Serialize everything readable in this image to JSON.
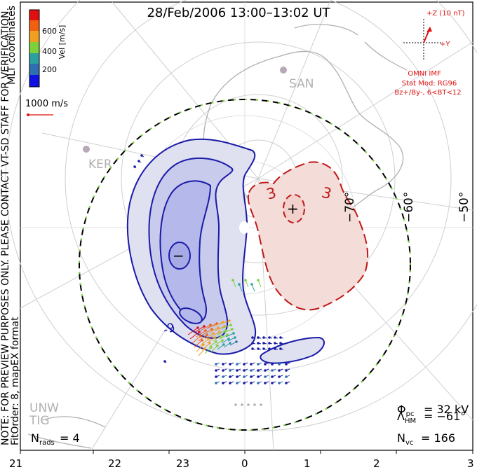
{
  "title": "28/Feb/2006 13:00–13:02 UT",
  "colorbar": {
    "label": "Vel [m/s]",
    "ticks": [
      "200",
      "400",
      "600"
    ],
    "colors": [
      "#1010e0",
      "#2f6fb0",
      "#2aa0a0",
      "#7ed03a",
      "#f0a020",
      "#f06010",
      "#e01010"
    ]
  },
  "side_label_mlt": "MLT coordinates",
  "vector_scale": "1000 m/s",
  "note_preview": "NOTE: FOR PREVIEW PURPOSES ONLY. PLEASE CONTACT VT-SD STAFF FOR VERIFICATION.",
  "note_fit": "FitOrder: 8, mapEX format",
  "imf": {
    "z_label": "+Z (10 nT)",
    "y_label": "+Y",
    "omni": "OMNI IMF",
    "stat_mod": "Stat Mod: RG96",
    "condition": "Bz+/By-, 6<BT<12"
  },
  "stations": [
    "SAN",
    "KER",
    "UNW",
    "TIG"
  ],
  "contours": {
    "neg_label": "-9",
    "pos_label": "3",
    "min_marker": "−",
    "max_marker": "+"
  },
  "lat_labels": [
    "−70°",
    "−60°",
    "−50°"
  ],
  "stats": {
    "phi_pc": "= 32 kV",
    "lambda_hm": "= −61°",
    "n_vc": "= 166",
    "n_rads": "= 4"
  },
  "mlt_ticks": [
    "21",
    "22",
    "23",
    "0",
    "1",
    "2",
    "3"
  ],
  "colors": {
    "neg": "#1a1aa8",
    "pos": "#c01818",
    "neg_fill": "#dfe0f0",
    "neg_fill2": "#c8cbec",
    "neg_fill3": "#b4b8ea",
    "pos_fill": "#f4dcd8",
    "grid": "#c8c8c8",
    "land": "#bdbdbd"
  }
}
